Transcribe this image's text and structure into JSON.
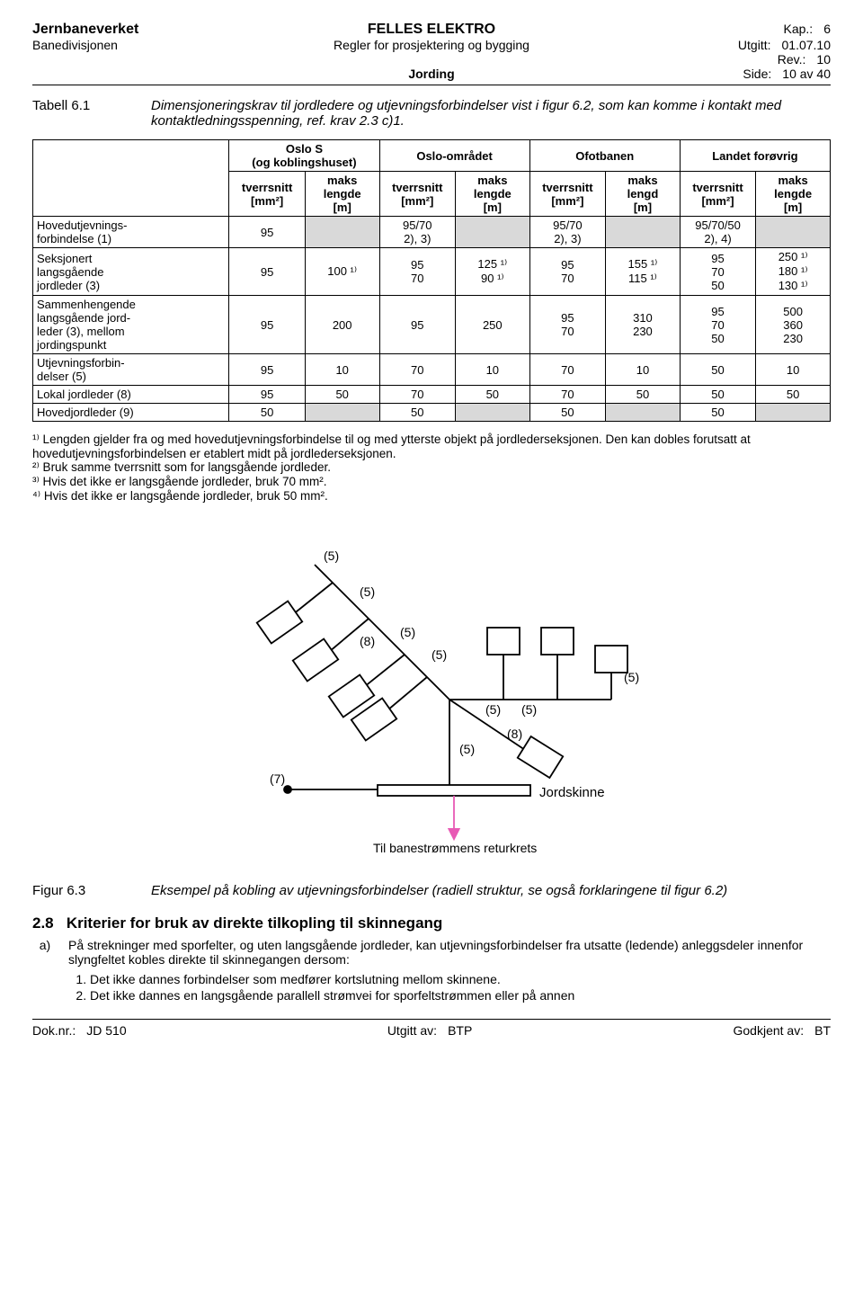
{
  "header": {
    "org_name": "Jernbaneverket",
    "main_title": "FELLES ELEKTRO",
    "kap_label": "Kap.:",
    "kap_value": "6",
    "division": "Banedivisjonen",
    "subtitle": "Regler for prosjektering og bygging",
    "utgitt_label": "Utgitt:",
    "utgitt_value": "01.07.10",
    "rev_label": "Rev.:",
    "rev_value": "10",
    "section_title": "Jording",
    "side_label": "Side:",
    "side_value": "10 av 40"
  },
  "tabell": {
    "label": "Tabell 6.1",
    "desc": "Dimensjoneringskrav til jordledere og utjevningsforbindelser vist i figur 6.2, som kan komme i kontakt med kontaktledningsspenning, ref. krav 2.3 c)1."
  },
  "table": {
    "col_groups": [
      "Oslo S\n(og koblingshuset)",
      "Oslo-området",
      "Ofotbanen",
      "Landet forøvrig"
    ],
    "subcol_a": "tverrsnitt\n[mm²]",
    "subcol_b_lengde": "maks\nlengde\n[m]",
    "subcol_b_lengd": "maks\nlengd\n[m]",
    "rows": [
      {
        "name": "Hovedutjevnings-\nforbindelse (1)",
        "cells": [
          "95",
          "",
          "95/70\n2), 3)",
          "",
          "95/70\n2), 3)",
          "",
          "95/70/50\n2), 4)",
          ""
        ],
        "shade": [
          false,
          true,
          false,
          true,
          false,
          true,
          false,
          true
        ]
      },
      {
        "name": "Seksjonert\nlangsgående\njordleder (3)",
        "cells": [
          "95",
          "100 ¹⁾",
          "95\n70",
          "125 ¹⁾\n90 ¹⁾",
          "95\n70",
          "155 ¹⁾\n115 ¹⁾",
          "95\n70\n50",
          "250 ¹⁾\n180 ¹⁾\n130 ¹⁾"
        ],
        "shade": [
          false,
          false,
          false,
          false,
          false,
          false,
          false,
          false
        ]
      },
      {
        "name": "Sammenhengende\nlangsgående jord-\nleder (3), mellom\njordingspunkt",
        "cells": [
          "95",
          "200",
          "95",
          "250",
          "95\n70",
          "310\n230",
          "95\n70\n50",
          "500\n360\n230"
        ],
        "shade": [
          false,
          false,
          false,
          false,
          false,
          false,
          false,
          false
        ]
      },
      {
        "name": "Utjevningsforbin-\ndelser (5)",
        "cells": [
          "95",
          "10",
          "70",
          "10",
          "70",
          "10",
          "50",
          "10"
        ],
        "shade": [
          false,
          false,
          false,
          false,
          false,
          false,
          false,
          false
        ]
      },
      {
        "name": "Lokal jordleder (8)",
        "cells": [
          "95",
          "50",
          "70",
          "50",
          "70",
          "50",
          "50",
          "50"
        ],
        "shade": [
          false,
          false,
          false,
          false,
          false,
          false,
          false,
          false
        ]
      },
      {
        "name": "Hovedjordleder (9)",
        "cells": [
          "50",
          "",
          "50",
          "",
          "50",
          "",
          "50",
          ""
        ],
        "shade": [
          false,
          true,
          false,
          true,
          false,
          true,
          false,
          true
        ]
      }
    ]
  },
  "footnotes": {
    "fn1": "¹⁾ Lengden gjelder fra og med hovedutjevningsforbindelse til og med ytterste objekt på jordlederseksjonen. Den kan dobles forutsatt at hovedutjevningsforbindelsen er etablert midt på jordlederseksjonen.",
    "fn2": "²⁾ Bruk samme tverrsnitt som for langsgående jordleder.",
    "fn3": "³⁾ Hvis det ikke er langsgående jordleder, bruk 70 mm².",
    "fn4": "⁴⁾ Hvis det ikke er langsgående jordleder, bruk 50 mm²."
  },
  "diagram": {
    "labels": [
      "(5)",
      "(5)",
      "(5)",
      "(5)",
      "(5)",
      "(5)",
      "(5)",
      "(5)",
      "(5)",
      "(8)",
      "(8)",
      "(7)"
    ],
    "jordskinne": "Jordskinne",
    "retur": "Til banestrømmens returkrets",
    "line_color": "#000000",
    "arrow_color": "#e85ab5",
    "box_fill": "#ffffff"
  },
  "figure": {
    "label": "Figur 6.3",
    "caption": "Eksempel på kobling av utjevningsforbindelser (radiell struktur, se også forklaringene til figur 6.2)"
  },
  "section": {
    "number": "2.8",
    "title": "Kriterier for bruk av direkte tilkopling til skinnegang",
    "clause_marker": "a)",
    "clause_body": "På strekninger med sporfelter, og uten langsgående jordleder, kan utjevningsforbindelser fra utsatte (ledende) anleggsdeler innenfor slyngfeltet kobles direkte til skinnegangen dersom:",
    "clause_items": [
      "Det ikke dannes forbindelser som medfører kortslutning mellom skinnene.",
      "Det ikke dannes en langsgående parallell strømvei for sporfeltstrømmen eller på annen"
    ]
  },
  "footer": {
    "dok_label": "Dok.nr.:",
    "dok_value": "JD 510",
    "utgitt_av_label": "Utgitt av:",
    "utgitt_av_value": "BTP",
    "godkjent_av_label": "Godkjent av:",
    "godkjent_av_value": "BT"
  }
}
